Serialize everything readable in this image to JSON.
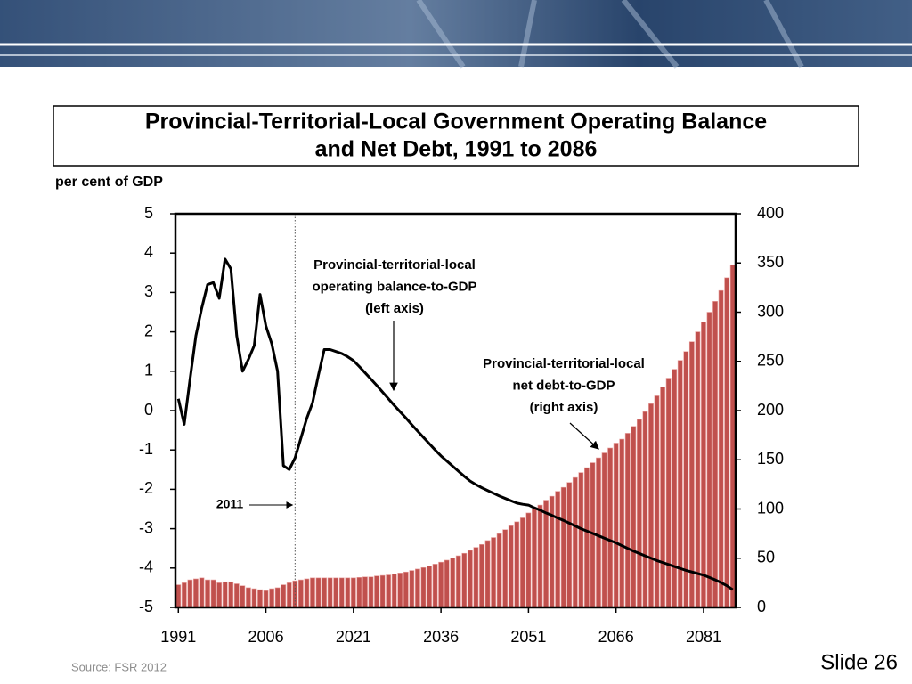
{
  "slide": {
    "title_lines": [
      "Provincial-Territorial-Local Government Operating Balance",
      "and Net Debt, 1991 to 2086"
    ],
    "source": "Source: FSR 2012",
    "slide_number": "Slide 26"
  },
  "chart_data": {
    "type": "combo",
    "y_axis_label": "per cent of GDP",
    "x": [
      1991,
      1992,
      1993,
      1994,
      1995,
      1996,
      1997,
      1998,
      1999,
      2000,
      2001,
      2002,
      2003,
      2004,
      2005,
      2006,
      2007,
      2008,
      2009,
      2010,
      2011,
      2012,
      2013,
      2014,
      2015,
      2016,
      2017,
      2018,
      2019,
      2020,
      2021,
      2022,
      2023,
      2024,
      2025,
      2026,
      2027,
      2028,
      2029,
      2030,
      2031,
      2032,
      2033,
      2034,
      2035,
      2036,
      2037,
      2038,
      2039,
      2040,
      2041,
      2042,
      2043,
      2044,
      2045,
      2046,
      2047,
      2048,
      2049,
      2050,
      2051,
      2052,
      2053,
      2054,
      2055,
      2056,
      2057,
      2058,
      2059,
      2060,
      2061,
      2062,
      2063,
      2064,
      2065,
      2066,
      2067,
      2068,
      2069,
      2070,
      2071,
      2072,
      2073,
      2074,
      2075,
      2076,
      2077,
      2078,
      2079,
      2080,
      2081,
      2082,
      2083,
      2084,
      2085,
      2086
    ],
    "xlim": [
      1990.5,
      2086.5
    ],
    "xticks": [
      1991,
      2006,
      2021,
      2036,
      2051,
      2066,
      2081
    ],
    "ylim": [
      -5,
      5
    ],
    "yticks": [
      -5,
      -4,
      -3,
      -2,
      -1,
      0,
      1,
      2,
      3,
      4,
      5
    ],
    "y2lim": [
      0,
      400
    ],
    "y2ticks": [
      0,
      50,
      100,
      150,
      200,
      250,
      300,
      350,
      400
    ],
    "series": [
      {
        "type": "line",
        "color": "#000000",
        "values": [
          0.3,
          -0.35,
          0.8,
          1.9,
          2.6,
          3.2,
          3.25,
          2.85,
          3.85,
          3.6,
          1.9,
          1.0,
          1.3,
          1.65,
          2.95,
          2.15,
          1.7,
          1.0,
          -1.4,
          -1.5,
          -1.2,
          -0.7,
          -0.2,
          0.2,
          0.9,
          1.55,
          1.55,
          1.5,
          1.45,
          1.37,
          1.27,
          1.12,
          0.96,
          0.8,
          0.64,
          0.47,
          0.3,
          0.13,
          -0.03,
          -0.19,
          -0.36,
          -0.52,
          -0.68,
          -0.84,
          -1.0,
          -1.15,
          -1.28,
          -1.41,
          -1.54,
          -1.67,
          -1.79,
          -1.88,
          -1.96,
          -2.03,
          -2.1,
          -2.17,
          -2.23,
          -2.29,
          -2.35,
          -2.38,
          -2.4,
          -2.47,
          -2.53,
          -2.6,
          -2.66,
          -2.73,
          -2.79,
          -2.86,
          -2.93,
          -3.0,
          -3.06,
          -3.12,
          -3.18,
          -3.24,
          -3.3,
          -3.36,
          -3.43,
          -3.5,
          -3.57,
          -3.63,
          -3.69,
          -3.75,
          -3.81,
          -3.86,
          -3.91,
          -3.96,
          -4.01,
          -4.06,
          -4.1,
          -4.14,
          -4.18,
          -4.24,
          -4.3,
          -4.37,
          -4.45,
          -4.55
        ]
      },
      {
        "type": "bar",
        "axis": "y2",
        "color": "#c0504d",
        "values": [
          23,
          25,
          28,
          29,
          30,
          28,
          28,
          25,
          26,
          26,
          24,
          22,
          20,
          19,
          18,
          17,
          19,
          20,
          23,
          25,
          27,
          28,
          29,
          30,
          30,
          30,
          30,
          30,
          30,
          30,
          30,
          30.5,
          31,
          31,
          32,
          32.5,
          33,
          34,
          35,
          36,
          37.5,
          39,
          40.5,
          42,
          44,
          46,
          48,
          50,
          52.5,
          55,
          58,
          61,
          64,
          68,
          71,
          75,
          79,
          83,
          87,
          91,
          96,
          100,
          104,
          109,
          113,
          118,
          122,
          127,
          132,
          137,
          142,
          147,
          152,
          157,
          162,
          167,
          171,
          177,
          184,
          191,
          199,
          207,
          215,
          224,
          233,
          242,
          251,
          260,
          270,
          280,
          290,
          300,
          311,
          322,
          335,
          348
        ]
      }
    ],
    "annotations": [
      {
        "lines": [
          "Provincial-territorial-local",
          "operating balance-to-GDP",
          "(left axis)"
        ]
      },
      {
        "lines": [
          "Provincial-territorial-local",
          "net debt-to-GDP",
          "(right axis)"
        ]
      }
    ],
    "reference_year": 2011
  }
}
